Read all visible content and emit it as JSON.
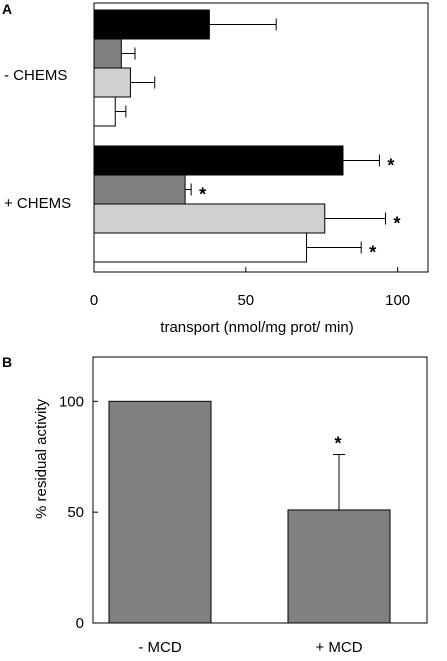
{
  "chart_data": [
    {
      "panel": "A",
      "type": "bar",
      "orientation": "horizontal",
      "categories": [
        "- CHEMS",
        "+ CHEMS"
      ],
      "series": [
        {
          "color": "#000000",
          "values": [
            38,
            82
          ],
          "errors": [
            22,
            12
          ],
          "significant": [
            false,
            true
          ]
        },
        {
          "color": "#808080",
          "values": [
            9,
            30
          ],
          "errors": [
            4.5,
            2
          ],
          "significant": [
            false,
            true
          ]
        },
        {
          "color": "#d0d0d0",
          "values": [
            12,
            76
          ],
          "errors": [
            8,
            20
          ],
          "significant": [
            false,
            true
          ]
        },
        {
          "color": "#ffffff",
          "values": [
            7,
            70
          ],
          "errors": [
            3.5,
            18
          ],
          "significant": [
            false,
            true
          ]
        }
      ],
      "xlabel": "transport (nmol/mg prot/ min)",
      "xlim": [
        0,
        110
      ],
      "xticks": [
        "0",
        "50",
        "100"
      ],
      "xtick_values": [
        0,
        50,
        100
      ],
      "significance_marker": "*",
      "grid": false
    },
    {
      "panel": "B",
      "type": "bar",
      "categories": [
        "- MCD",
        "+ MCD"
      ],
      "values": [
        100,
        51
      ],
      "errors": [
        0,
        25
      ],
      "significant": [
        false,
        true
      ],
      "bar_color": "#808080",
      "ylabel": "% residual activity",
      "ylim": [
        0,
        120
      ],
      "yticks": [
        "0",
        "50",
        "100"
      ],
      "ytick_values": [
        0,
        50,
        100
      ],
      "significance_marker": "*",
      "grid": false
    }
  ]
}
